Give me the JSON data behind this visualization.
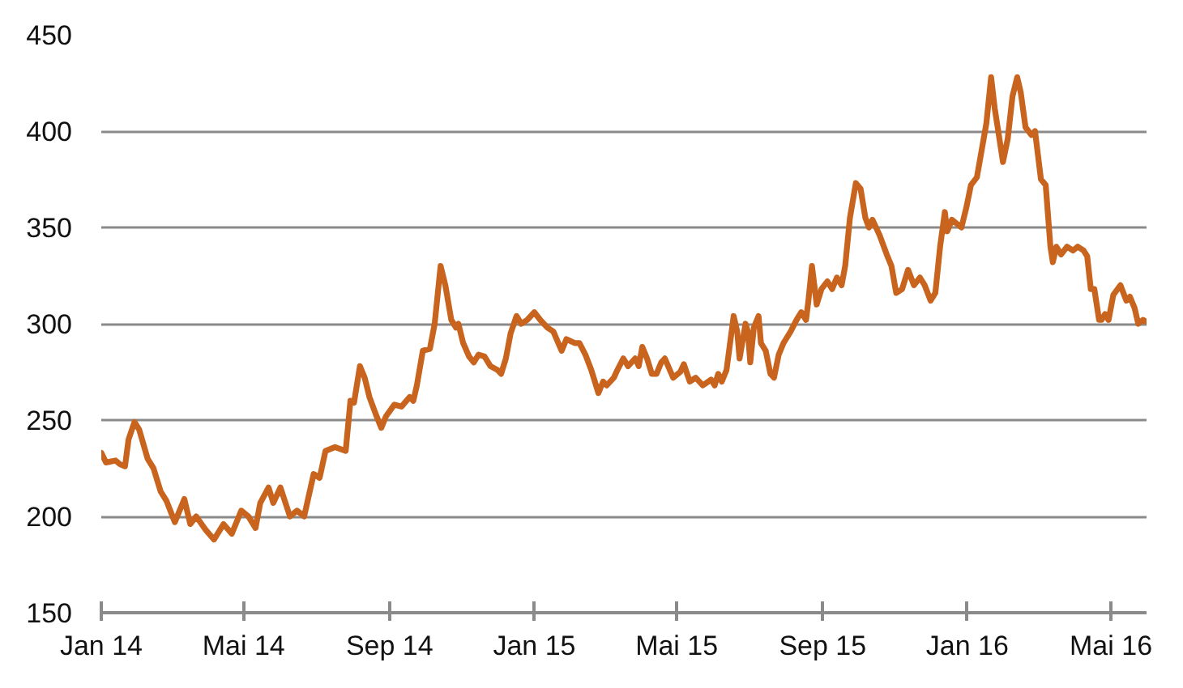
{
  "chart_data": {
    "type": "line",
    "x": [
      "2014-01-01",
      "2014-01-05",
      "2014-01-13",
      "2014-01-17",
      "2014-01-21",
      "2014-01-24",
      "2014-01-29",
      "2014-02-02",
      "2014-02-09",
      "2014-02-14",
      "2014-02-20",
      "2014-02-25",
      "2014-03-04",
      "2014-03-12",
      "2014-03-17",
      "2014-03-22",
      "2014-03-30",
      "2014-04-06",
      "2014-04-14",
      "2014-04-21",
      "2014-04-29",
      "2014-05-05",
      "2014-05-11",
      "2014-05-15",
      "2014-05-22",
      "2014-05-26",
      "2014-06-01",
      "2014-06-09",
      "2014-06-15",
      "2014-06-21",
      "2014-06-29",
      "2014-07-04",
      "2014-07-09",
      "2014-07-17",
      "2014-07-26",
      "2014-07-30",
      "2014-08-02",
      "2014-08-07",
      "2014-08-11",
      "2014-08-15",
      "2014-08-21",
      "2014-08-25",
      "2014-08-29",
      "2014-09-05",
      "2014-09-11",
      "2014-09-18",
      "2014-09-21",
      "2014-09-24",
      "2014-09-29",
      "2014-10-05",
      "2014-10-09",
      "2014-10-14",
      "2014-10-18",
      "2014-10-23",
      "2014-10-27",
      "2014-10-29",
      "2014-11-02",
      "2014-11-07",
      "2014-11-11",
      "2014-11-15",
      "2014-11-20",
      "2014-11-25",
      "2014-12-01",
      "2014-12-04",
      "2014-12-08",
      "2014-12-12",
      "2014-12-17",
      "2014-12-21",
      "2014-12-26",
      "2015-01-01",
      "2015-01-06",
      "2015-01-12",
      "2015-01-17",
      "2015-01-24",
      "2015-01-28",
      "2015-02-04",
      "2015-02-08",
      "2015-02-13",
      "2015-02-18",
      "2015-02-24",
      "2015-02-28",
      "2015-03-03",
      "2015-03-09",
      "2015-03-12",
      "2015-03-17",
      "2015-03-21",
      "2015-03-27",
      "2015-03-30",
      "2015-04-02",
      "2015-04-06",
      "2015-04-10",
      "2015-04-14",
      "2015-04-18",
      "2015-04-21",
      "2015-04-28",
      "2015-05-04",
      "2015-05-07",
      "2015-05-12",
      "2015-05-17",
      "2015-05-23",
      "2015-05-30",
      "2015-06-02",
      "2015-06-05",
      "2015-06-08",
      "2015-06-12",
      "2015-06-15",
      "2015-06-18",
      "2015-06-21",
      "2015-06-23",
      "2015-06-28",
      "2015-06-30",
      "2015-07-02",
      "2015-07-05",
      "2015-07-09",
      "2015-07-11",
      "2015-07-15",
      "2015-07-19",
      "2015-07-22",
      "2015-07-26",
      "2015-07-30",
      "2015-08-05",
      "2015-08-10",
      "2015-08-14",
      "2015-08-18",
      "2015-08-20",
      "2015-08-23",
      "2015-08-27",
      "2015-08-31",
      "2015-09-05",
      "2015-09-09",
      "2015-09-13",
      "2015-09-17",
      "2015-09-20",
      "2015-09-24",
      "2015-09-29",
      "2015-10-03",
      "2015-10-07",
      "2015-10-10",
      "2015-10-13",
      "2015-10-19",
      "2015-10-25",
      "2015-10-29",
      "2015-11-02",
      "2015-11-07",
      "2015-11-12",
      "2015-11-17",
      "2015-11-22",
      "2015-11-26",
      "2015-12-01",
      "2015-12-05",
      "2015-12-09",
      "2015-12-13",
      "2015-12-15",
      "2015-12-19",
      "2015-12-23",
      "2015-12-27",
      "2015-12-31",
      "2016-01-04",
      "2016-01-09",
      "2016-01-13",
      "2016-01-17",
      "2016-01-21",
      "2016-01-24",
      "2016-01-27",
      "2016-01-31",
      "2016-02-04",
      "2016-02-08",
      "2016-02-12",
      "2016-02-15",
      "2016-02-19",
      "2016-02-24",
      "2016-02-27",
      "2016-03-03",
      "2016-03-07",
      "2016-03-11",
      "2016-03-13",
      "2016-03-16",
      "2016-03-20",
      "2016-03-25",
      "2016-03-30",
      "2016-04-03",
      "2016-04-08",
      "2016-04-11",
      "2016-04-14",
      "2016-04-17",
      "2016-04-21",
      "2016-04-23",
      "2016-04-26",
      "2016-04-29",
      "2016-05-03",
      "2016-05-09",
      "2016-05-14",
      "2016-05-17",
      "2016-05-21",
      "2016-05-24",
      "2016-05-28",
      "2016-05-31"
    ],
    "series": [
      {
        "color": "#c8641e",
        "values": [
          233,
          228,
          229,
          227,
          226,
          240,
          249,
          245,
          230,
          225,
          213,
          208,
          197,
          209,
          196,
          200,
          193,
          188,
          196,
          191,
          203,
          200,
          194,
          207,
          215,
          207,
          215,
          200,
          203,
          200,
          222,
          220,
          234,
          236,
          234,
          260,
          259,
          278,
          272,
          262,
          252,
          246,
          252,
          258,
          257,
          262,
          260,
          268,
          286,
          287,
          300,
          330,
          320,
          302,
          298,
          300,
          290,
          283,
          280,
          284,
          283,
          278,
          276,
          274,
          282,
          295,
          304,
          300,
          302,
          306,
          302,
          298,
          296,
          286,
          292,
          290,
          290,
          284,
          276,
          264,
          270,
          268,
          272,
          276,
          282,
          278,
          282,
          278,
          288,
          282,
          274,
          274,
          280,
          282,
          272,
          275,
          279,
          270,
          272,
          268,
          271,
          268,
          274,
          270,
          276,
          290,
          304,
          296,
          282,
          300,
          296,
          280,
          298,
          304,
          290,
          286,
          274,
          272,
          284,
          290,
          296,
          302,
          306,
          302,
          312,
          330,
          310,
          318,
          322,
          318,
          324,
          320,
          330,
          355,
          373,
          370,
          355,
          350,
          354,
          346,
          336,
          330,
          316,
          318,
          328,
          320,
          324,
          320,
          312,
          316,
          340,
          358,
          348,
          354,
          352,
          350,
          360,
          372,
          376,
          390,
          404,
          428,
          412,
          400,
          384,
          396,
          418,
          428,
          420,
          402,
          398,
          400,
          375,
          372,
          340,
          332,
          340,
          336,
          340,
          338,
          340,
          338,
          335,
          318,
          318,
          302,
          302,
          305,
          302,
          315,
          320,
          312,
          314,
          308,
          300,
          302,
          301
        ]
      }
    ],
    "xlim": [
      "2014-01-01",
      "2016-05-31"
    ],
    "xticks": [
      {
        "value": "2014-01-01",
        "label": "Jan 14"
      },
      {
        "value": "2014-05-01",
        "label": "Mai 14"
      },
      {
        "value": "2014-09-01",
        "label": "Sep 14"
      },
      {
        "value": "2015-01-01",
        "label": "Jan 15"
      },
      {
        "value": "2015-05-01",
        "label": "Mai 15"
      },
      {
        "value": "2015-09-01",
        "label": "Sep 15"
      },
      {
        "value": "2016-01-01",
        "label": "Jan 16"
      },
      {
        "value": "2016-05-01",
        "label": "Mai 16"
      }
    ],
    "ylim": [
      150,
      450
    ],
    "yticks": [
      150,
      200,
      250,
      300,
      350,
      400,
      450
    ],
    "grid": "y"
  }
}
